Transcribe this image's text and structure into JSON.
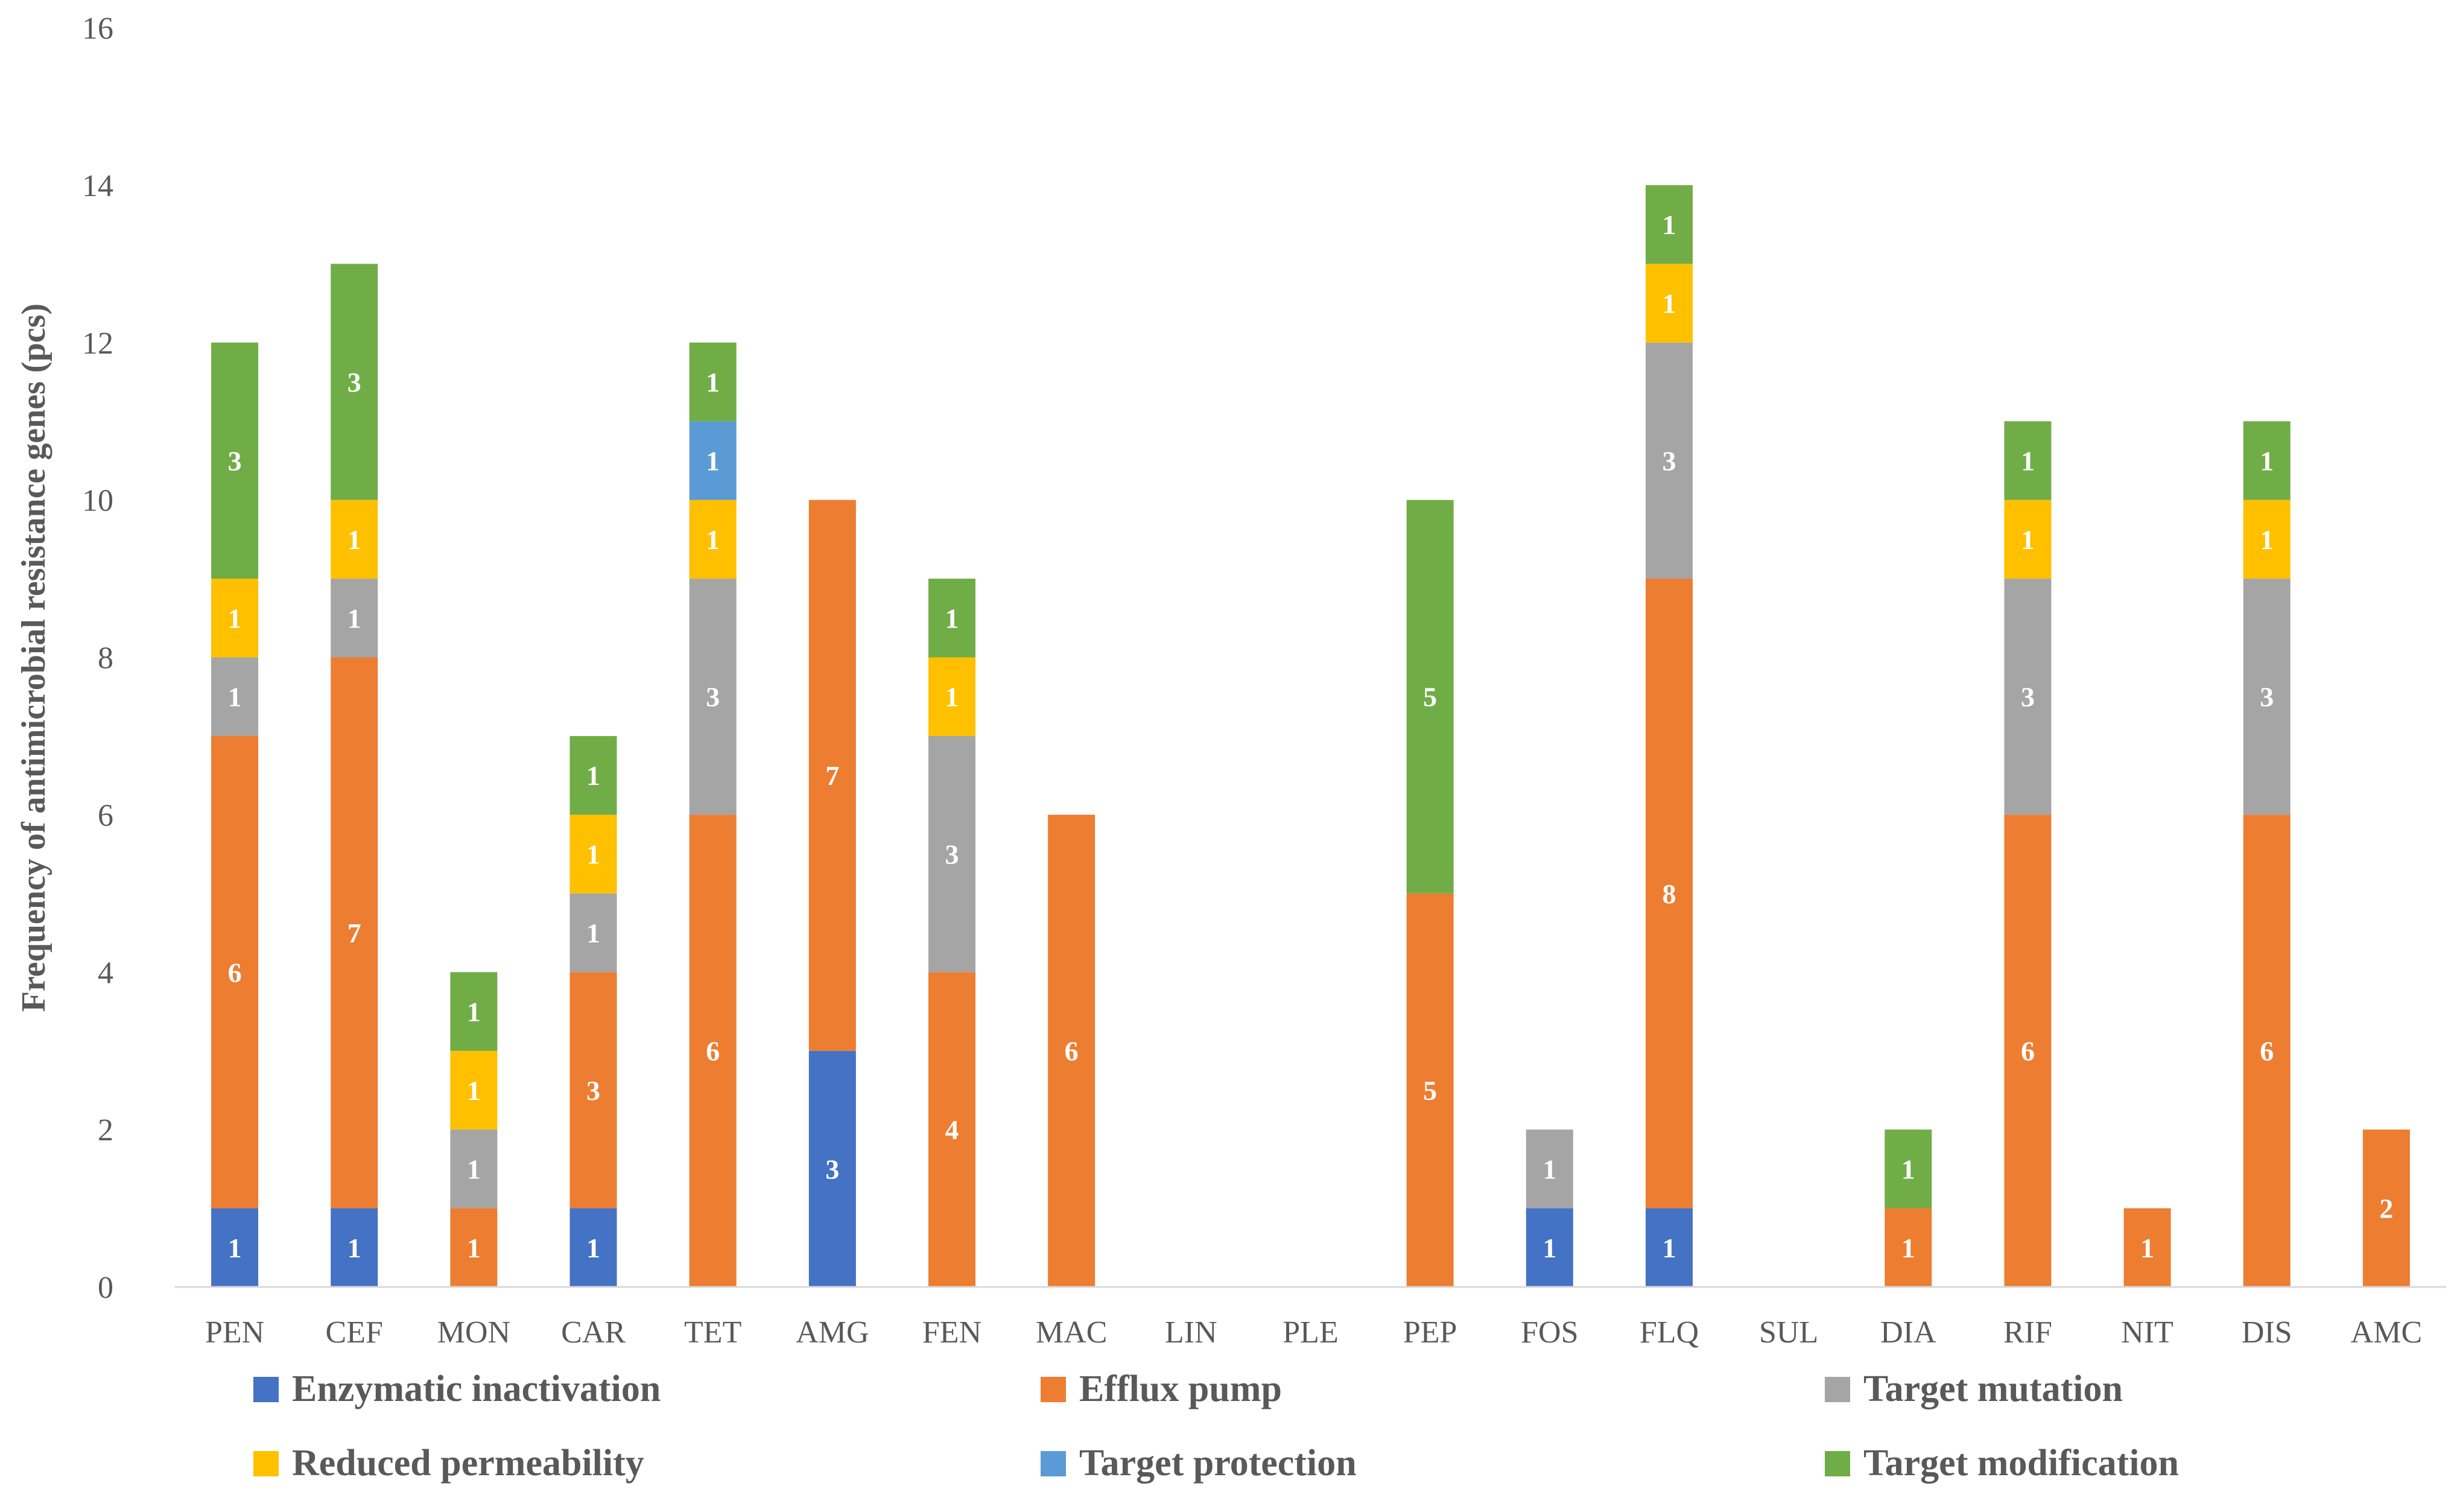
{
  "chart_data": {
    "type": "bar",
    "stacked": true,
    "title": "",
    "xlabel": "",
    "ylabel": "Frequency of antimicrobial resistance genes (pcs)",
    "ylim": [
      0,
      16
    ],
    "yticks": [
      0,
      2,
      4,
      6,
      8,
      10,
      12,
      14,
      16
    ],
    "grid": false,
    "legend_position": "bottom",
    "categories": [
      "PEN",
      "CEF",
      "MON",
      "CAR",
      "TET",
      "AMG",
      "FEN",
      "MAC",
      "LIN",
      "PLE",
      "PEP",
      "FOS",
      "FLQ",
      "SUL",
      "DIA",
      "RIF",
      "NIT",
      "DIS",
      "AMC"
    ],
    "series": [
      {
        "name": "Enzymatic inactivation",
        "color": "#4472c4",
        "values": [
          1,
          1,
          0,
          1,
          0,
          3,
          0,
          0,
          0,
          0,
          0,
          1,
          1,
          0,
          0,
          0,
          0,
          0,
          0
        ]
      },
      {
        "name": "Efflux pump",
        "color": "#ed7d31",
        "values": [
          6,
          7,
          1,
          3,
          6,
          7,
          4,
          6,
          0,
          0,
          5,
          0,
          8,
          0,
          1,
          6,
          1,
          6,
          2
        ]
      },
      {
        "name": "Target mutation",
        "color": "#a5a5a5",
        "values": [
          1,
          1,
          1,
          1,
          3,
          0,
          3,
          0,
          0,
          0,
          0,
          1,
          3,
          0,
          0,
          3,
          0,
          3,
          0
        ]
      },
      {
        "name": "Reduced permeability",
        "color": "#ffc000",
        "values": [
          1,
          1,
          1,
          1,
          1,
          0,
          1,
          0,
          0,
          0,
          0,
          0,
          1,
          0,
          0,
          1,
          0,
          1,
          0
        ]
      },
      {
        "name": "Target protection",
        "color": "#5b9bd5",
        "values": [
          0,
          0,
          0,
          0,
          1,
          0,
          0,
          0,
          0,
          0,
          0,
          0,
          0,
          0,
          0,
          0,
          0,
          0,
          0
        ]
      },
      {
        "name": "Target modification",
        "color": "#70ad47",
        "values": [
          3,
          3,
          1,
          1,
          1,
          0,
          1,
          0,
          0,
          0,
          5,
          0,
          1,
          0,
          1,
          1,
          0,
          1,
          0
        ]
      }
    ],
    "data_labels": {
      "Enzymatic inactivation": [
        true,
        true,
        false,
        true,
        false,
        true,
        false,
        false,
        false,
        false,
        false,
        true,
        true,
        false,
        false,
        false,
        false,
        false,
        false
      ],
      "Efflux pump": [
        true,
        true,
        true,
        true,
        true,
        true,
        true,
        true,
        false,
        false,
        true,
        false,
        true,
        false,
        true,
        true,
        true,
        true,
        true
      ],
      "Target mutation": [
        true,
        true,
        true,
        true,
        true,
        false,
        true,
        false,
        false,
        false,
        false,
        true,
        true,
        false,
        false,
        true,
        false,
        true,
        false
      ],
      "Reduced permeability": [
        true,
        true,
        true,
        true,
        true,
        false,
        true,
        false,
        false,
        false,
        false,
        false,
        true,
        false,
        false,
        true,
        false,
        true,
        false
      ],
      "Target protection": [
        false,
        false,
        false,
        false,
        true,
        false,
        false,
        false,
        false,
        false,
        false,
        false,
        false,
        false,
        false,
        false,
        false,
        false,
        false
      ],
      "Target modification": [
        true,
        true,
        true,
        true,
        true,
        false,
        true,
        false,
        false,
        false,
        true,
        false,
        true,
        false,
        true,
        true,
        false,
        true,
        false
      ]
    }
  }
}
